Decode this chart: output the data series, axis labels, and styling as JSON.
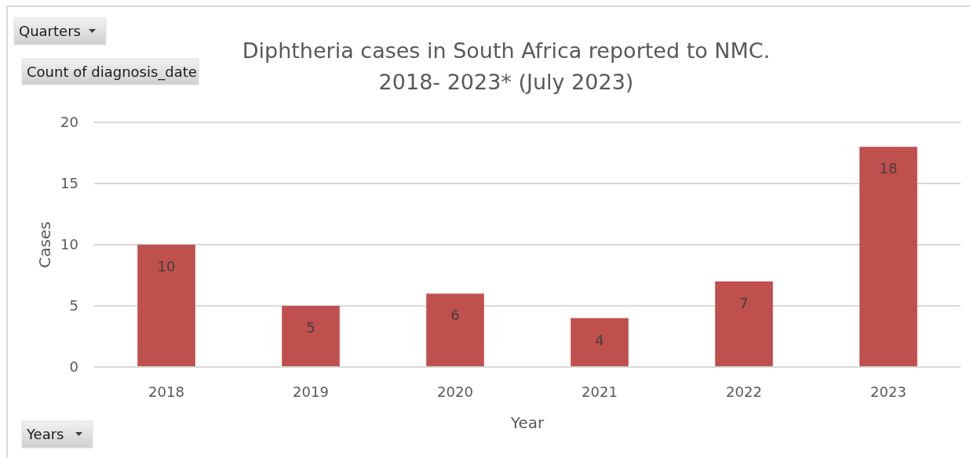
{
  "chart_data": {
    "type": "bar",
    "title": "Diphtheria cases in South Africa reported to NMC.\n2018- 2023* (July 2023)",
    "xlabel": "Year",
    "ylabel": "Cases",
    "categories": [
      "2018",
      "2019",
      "2020",
      "2021",
      "2022",
      "2023"
    ],
    "values": [
      10,
      5,
      6,
      4,
      7,
      18
    ],
    "color": "#c0504d",
    "ylim": [
      0,
      20
    ],
    "yticks": [
      0,
      5,
      10,
      15,
      20
    ],
    "grid": "y",
    "data_labels": true,
    "annotations": [
      "Quarters",
      "Count of diagnosis_date",
      "Years"
    ]
  }
}
